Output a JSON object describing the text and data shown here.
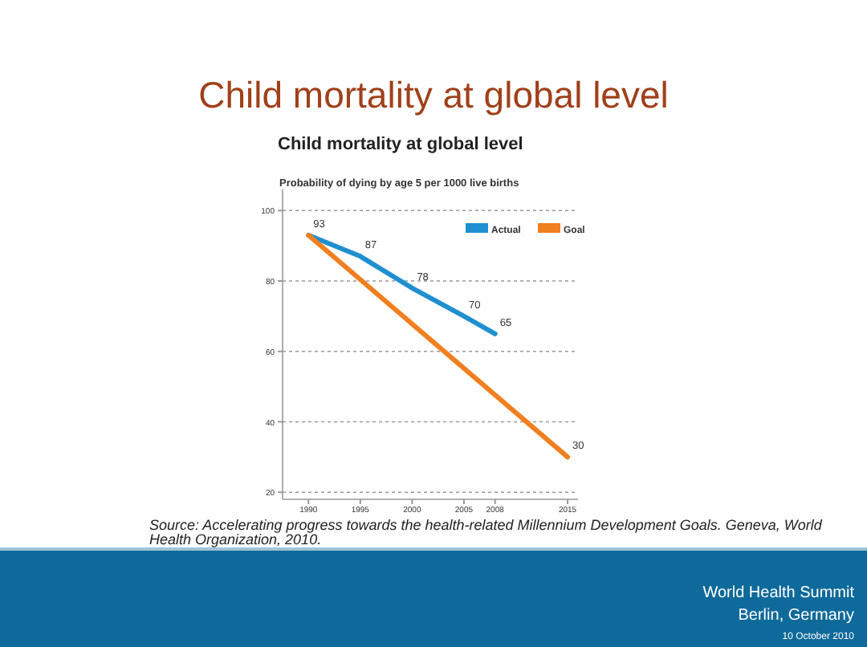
{
  "chart_data": {
    "type": "line",
    "title": "Child mortality at global level",
    "subtitle": "Child mortality at global level",
    "ylabel": "Probability of dying by age 5 per 1000 live births",
    "xlim": [
      1987.5,
      2016
    ],
    "xticks": [
      1990,
      1995,
      2000,
      2005,
      2008,
      2015
    ],
    "ylim": [
      18,
      106
    ],
    "yticks": [
      20,
      40,
      60,
      80,
      100
    ],
    "grid": "y",
    "legend": "top right",
    "marker": "none",
    "line_style": "solid",
    "series": [
      {
        "name": "Actual",
        "color": "#1f8fd0",
        "x": [
          1990,
          1995,
          2000,
          2005,
          2008
        ],
        "values": [
          93,
          87,
          78,
          70,
          65
        ],
        "value_labels": [
          "93",
          "87",
          "78",
          "70",
          "65"
        ]
      },
      {
        "name": "Goal",
        "color": "#f07f1f",
        "x": [
          1990,
          2015
        ],
        "values": [
          93,
          30
        ],
        "value_labels": [
          null,
          "30"
        ]
      }
    ],
    "annotations": [
      "Source: Accelerating progress towards the health-related Millennium Development Goals. Geneva, World Health Organization, 2010.",
      "World Health Summit",
      "Berlin, Germany",
      "10 October 2010"
    ]
  }
}
